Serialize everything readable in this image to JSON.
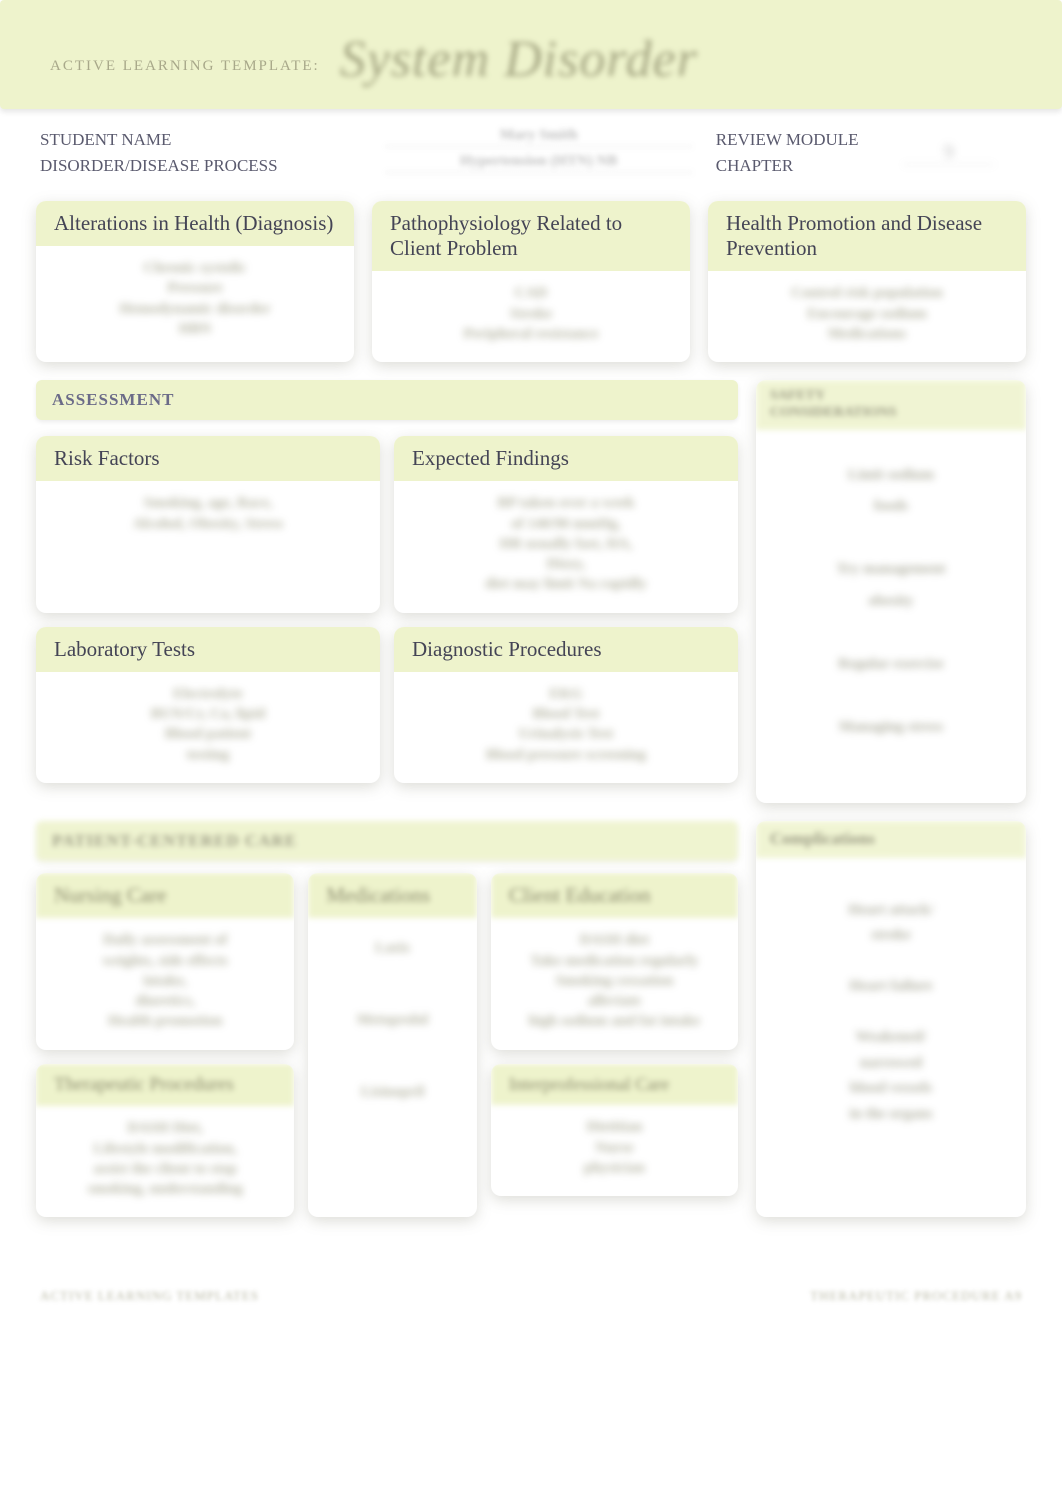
{
  "colors": {
    "panel_bg": "#eef3cc",
    "text_label": "#5a5a6e",
    "text_muted": "#888866",
    "shadow": "rgba(120,120,100,0.25)"
  },
  "banner": {
    "left_label": "ACTIVE LEARNING TEMPLATE:",
    "title": "System Disorder"
  },
  "info": {
    "student_name_label": "STUDENT NAME",
    "disorder_label": "DISORDER/DISEASE PROCESS",
    "review_label": "REVIEW MODULE CHAPTER",
    "student_value": "Mary Smith",
    "disorder_value": "Hypertension (HTN) NB",
    "chapter_value": "9"
  },
  "row1": {
    "alterations": {
      "title": "Alterations in Health (Diagnosis)",
      "body": "Chronic systolic\\nPressure\\nHemodynamic disorder\\nHBN"
    },
    "patho": {
      "title": "Pathophysiology Related to Client Problem",
      "body": "CAD\\nStroke\\nPeripheral resistance"
    },
    "promotion": {
      "title": "Health Promotion and Disease Prevention",
      "body": "Control risk population\\nEncourage sodium\\nMedications"
    }
  },
  "assessment": {
    "bar": "ASSESSMENT",
    "risk": {
      "title": "Risk Factors",
      "body": "Smoking, age, Race,\\nAlcohol, Obesity, Stress"
    },
    "findings": {
      "title": "Expected Findings",
      "body": "BP taken over a week\\nof 140/90 mmHg,\\nHR usually fast, HA,\\nDizzy,\\ndiet may limit Na rapidly"
    },
    "labs": {
      "title": "Laboratory Tests",
      "body": "Electrolyte\\nBUN/Cr, Ca, lipid\\nBlood patient\\ntesting"
    },
    "diagnostic": {
      "title": "Diagnostic Procedures",
      "body": "EKG\\nBlood Test\\nUrinalysis Test\\nBlood pressure screening"
    },
    "safety": {
      "strip": "SAFETY\\nCONSIDERATIONS",
      "body": "Limit sodium\\nfoods\\n\\nTry management\\nobesity\\n\\nRegular exercise\\n\\nManaging stress"
    }
  },
  "pcc": {
    "bar": "PATIENT-CENTERED CARE",
    "nursing": {
      "title": "Nursing Care",
      "body": "Daily assessment of\\nweights, side effects\\nintake,\\ndiuretics,\\nHealth promotion"
    },
    "therapeutic": {
      "title": "Therapeutic Procedures",
      "body": "DASH Diet,\\nLifestyle modification,\\nassist the client to stop\\nsmoking, understanding"
    },
    "meds": {
      "title": "Medications",
      "body": "Lasix\\n\\nMetoprolol\\n\\nLisinopril"
    },
    "education": {
      "title": "Client Education",
      "body": "DASH diet\\nTake medication regularly\\nSmoking cessation\\nalleviate\\nhigh sodium and fat intake"
    },
    "interprofessional": {
      "title": "Interprofessional Care",
      "body": "Dietitian\\nNurse\\nphysician"
    },
    "complications": {
      "title": "Complications",
      "body": "Heart attack/\\nstroke\\n\\nHeart failure\\n\\nWeakened/\\nnarrowed\\nblood vessels\\nin the organs"
    }
  },
  "footer": {
    "left": "ACTIVE LEARNING TEMPLATES",
    "right": "THERAPEUTIC PROCEDURE     A9"
  }
}
